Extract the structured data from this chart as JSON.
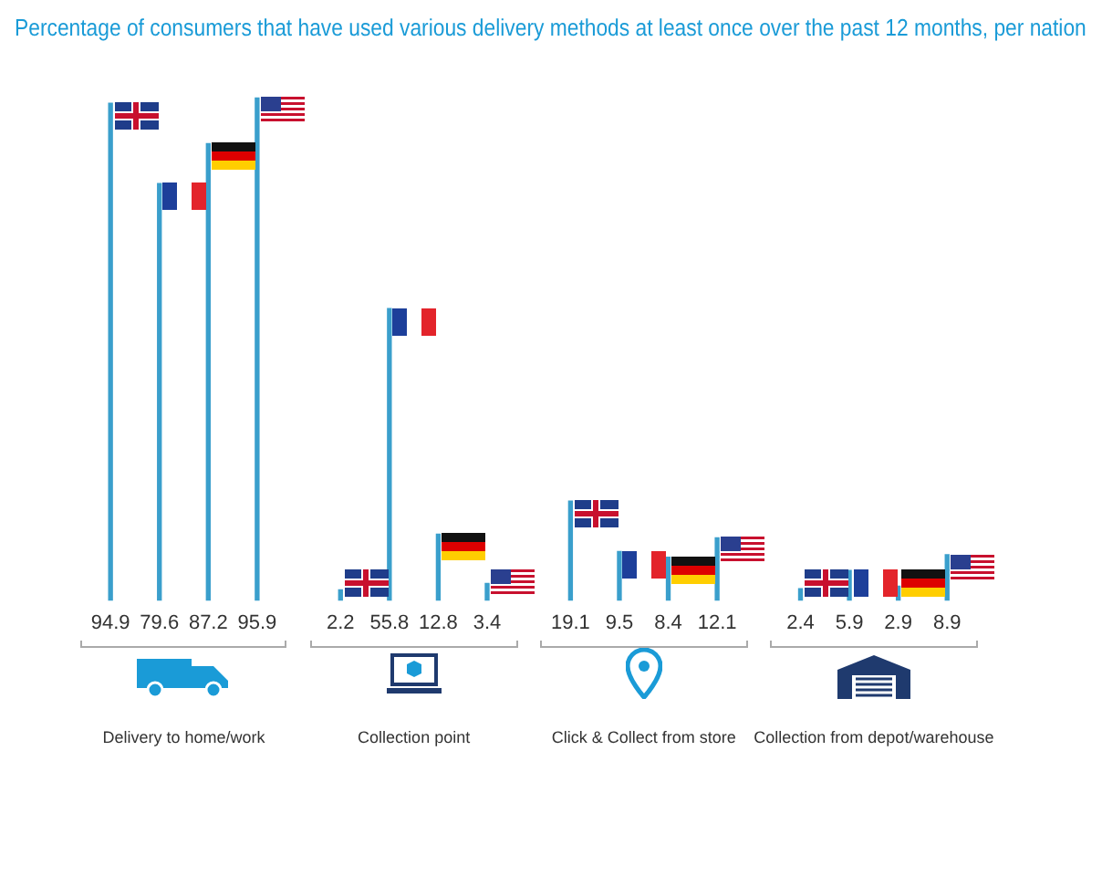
{
  "chart_data": {
    "type": "bar",
    "title": "Percentage of consumers that have used various delivery methods at least once over the past 12 months, per nation",
    "categories": [
      "Delivery to home/work",
      "Collection point",
      "Click & Collect from store",
      "Collection from depot/warehouse"
    ],
    "series": [
      {
        "color": "#3a9fcc",
        "values": [
          94.9,
          2.2,
          19.1,
          2.4
        ]
      },
      {
        "color": "#3a9fcc",
        "values": [
          79.6,
          55.8,
          9.5,
          5.9
        ]
      },
      {
        "color": "#3a9fcc",
        "values": [
          87.2,
          12.8,
          8.4,
          2.9
        ]
      },
      {
        "color": "#3a9fcc",
        "values": [
          95.9,
          3.4,
          12.1,
          8.9
        ]
      }
    ],
    "data_labels": true,
    "legend": false,
    "grid": false
  }
}
